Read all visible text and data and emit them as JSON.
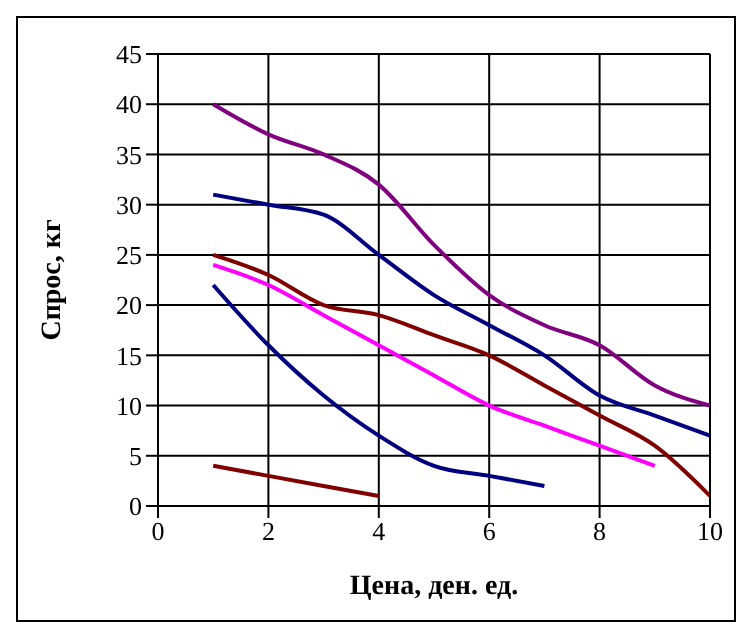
{
  "chart_data": {
    "type": "line",
    "xlabel": "Цена, ден. ед.",
    "ylabel": "Спрос, кг",
    "xlim": [
      0,
      10
    ],
    "xticks": [
      0,
      2,
      4,
      6,
      8,
      10
    ],
    "ylim": [
      0,
      45
    ],
    "yticks": [
      0,
      5,
      10,
      15,
      20,
      25,
      30,
      35,
      40,
      45
    ],
    "grid": true,
    "legend": false,
    "marker": "none",
    "line_style": "solid",
    "series": [
      {
        "color": "#800080",
        "x": [
          1,
          2,
          3,
          4,
          5,
          6,
          7,
          8,
          9,
          10
        ],
        "values": [
          40,
          37,
          35,
          32,
          26,
          21,
          18,
          16,
          12,
          10
        ]
      },
      {
        "color": "#000080",
        "x": [
          1,
          2,
          3,
          4,
          5,
          6,
          7,
          8,
          9,
          10
        ],
        "values": [
          31,
          30,
          29,
          25,
          21,
          18,
          15,
          11,
          9,
          7
        ]
      },
      {
        "color": "#800000",
        "x": [
          1,
          2,
          3,
          4,
          5,
          6,
          7,
          8,
          9,
          10
        ],
        "values": [
          25,
          23,
          20,
          19,
          17,
          15,
          12,
          9,
          6,
          1
        ]
      },
      {
        "color": "#ff00ff",
        "x": [
          1,
          2,
          3,
          4,
          5,
          6,
          7,
          8,
          9
        ],
        "values": [
          24,
          22,
          19,
          16,
          13,
          10,
          8,
          6,
          4
        ]
      },
      {
        "color": "#000080",
        "x": [
          1,
          2,
          3,
          4,
          5,
          6,
          7
        ],
        "values": [
          22,
          16,
          11,
          7,
          4,
          3,
          2
        ]
      },
      {
        "color": "#800000",
        "x": [
          1,
          2,
          3,
          4
        ],
        "values": [
          4,
          3,
          2,
          1
        ]
      }
    ]
  }
}
